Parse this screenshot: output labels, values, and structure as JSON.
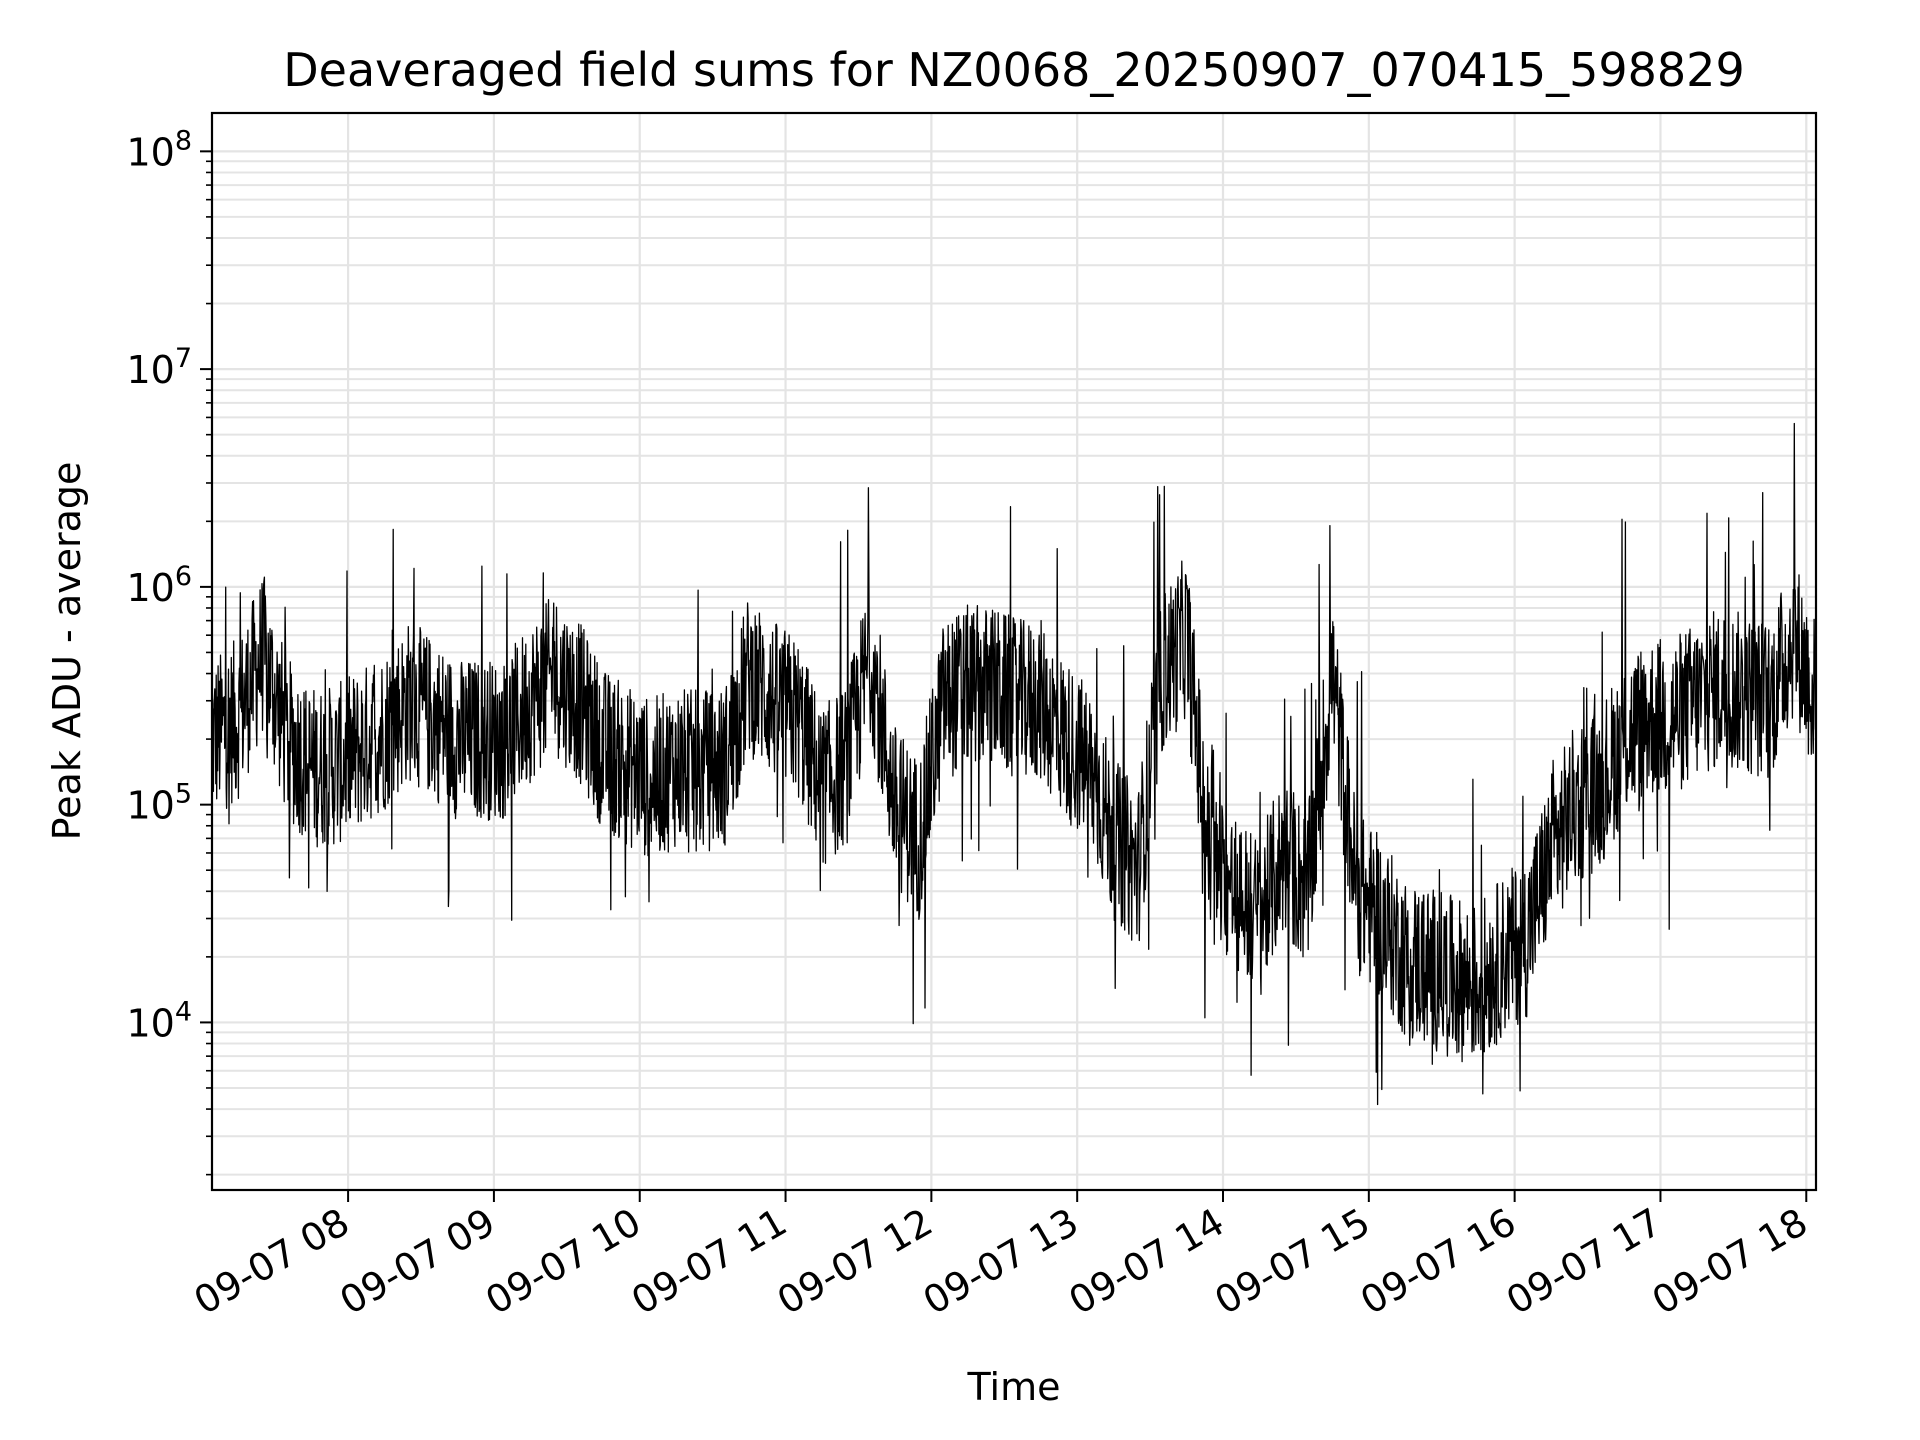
{
  "chart_data": {
    "type": "line",
    "title": "Deaveraged field sums for NZ0068_20250907_070415_598829",
    "xlabel": "Time",
    "ylabel": "Peak ADU - average",
    "yscale": "log",
    "grid": true,
    "x_tick_labels": [
      "09-07 08",
      "09-07 09",
      "09-07 10",
      "09-07 11",
      "09-07 12",
      "09-07 13",
      "09-07 14",
      "09-07 15",
      "09-07 16",
      "09-07 17",
      "09-07 18"
    ],
    "y_ticks": [
      10000,
      100000,
      1000000,
      10000000,
      100000000
    ],
    "y_tick_labels": [
      {
        "base": "10",
        "exp": "4"
      },
      {
        "base": "10",
        "exp": "5"
      },
      {
        "base": "10",
        "exp": "6"
      },
      {
        "base": "10",
        "exp": "7"
      },
      {
        "base": "10",
        "exp": "8"
      }
    ],
    "xlim": [
      "2025-09-07 07:04",
      "2025-09-07 18:04"
    ],
    "ylim": [
      1700,
      150000000
    ],
    "line_color": "#000000",
    "series": [
      {
        "x": [
          "2025-09-07 07:04",
          "2025-09-07 07:15",
          "2025-09-07 07:25",
          "2025-09-07 07:35",
          "2025-09-07 07:45",
          "2025-09-07 07:55",
          "2025-09-07 08:05",
          "2025-09-07 08:15",
          "2025-09-07 08:25",
          "2025-09-07 08:35",
          "2025-09-07 08:45",
          "2025-09-07 08:55",
          "2025-09-07 09:05",
          "2025-09-07 09:15",
          "2025-09-07 09:25",
          "2025-09-07 09:35",
          "2025-09-07 09:45",
          "2025-09-07 09:55",
          "2025-09-07 10:05",
          "2025-09-07 10:15",
          "2025-09-07 10:25",
          "2025-09-07 10:35",
          "2025-09-07 10:45",
          "2025-09-07 10:55",
          "2025-09-07 11:05",
          "2025-09-07 11:15",
          "2025-09-07 11:25",
          "2025-09-07 11:35",
          "2025-09-07 11:45",
          "2025-09-07 11:55",
          "2025-09-07 12:05",
          "2025-09-07 12:15",
          "2025-09-07 12:25",
          "2025-09-07 12:35",
          "2025-09-07 12:45",
          "2025-09-07 12:55",
          "2025-09-07 13:05",
          "2025-09-07 13:15",
          "2025-09-07 13:25",
          "2025-09-07 13:35",
          "2025-09-07 13:45",
          "2025-09-07 13:55",
          "2025-09-07 14:05",
          "2025-09-07 14:15",
          "2025-09-07 14:25",
          "2025-09-07 14:35",
          "2025-09-07 14:45",
          "2025-09-07 14:55",
          "2025-09-07 15:05",
          "2025-09-07 15:15",
          "2025-09-07 15:25",
          "2025-09-07 15:35",
          "2025-09-07 15:45",
          "2025-09-07 15:55",
          "2025-09-07 16:05",
          "2025-09-07 16:15",
          "2025-09-07 16:25",
          "2025-09-07 16:35",
          "2025-09-07 16:45",
          "2025-09-07 16:55",
          "2025-09-07 17:05",
          "2025-09-07 17:15",
          "2025-09-07 17:25",
          "2025-09-07 17:35",
          "2025-09-07 17:45",
          "2025-09-07 17:55",
          "2025-09-07 18:04"
        ],
        "y": [
          200000,
          250000,
          500000,
          200000,
          150000,
          150000,
          180000,
          220000,
          300000,
          250000,
          200000,
          200000,
          200000,
          300000,
          400000,
          300000,
          180000,
          150000,
          130000,
          150000,
          140000,
          150000,
          400000,
          300000,
          250000,
          120000,
          150000,
          500000,
          100000,
          70000,
          300000,
          350000,
          350000,
          300000,
          300000,
          200000,
          150000,
          70000,
          50000,
          400000,
          600000,
          50000,
          40000,
          30000,
          60000,
          40000,
          400000,
          40000,
          30000,
          20000,
          18000,
          16000,
          15000,
          20000,
          25000,
          60000,
          100000,
          120000,
          200000,
          250000,
          250000,
          300000,
          350000,
          320000,
          300000,
          600000,
          300000
        ]
      }
    ]
  }
}
